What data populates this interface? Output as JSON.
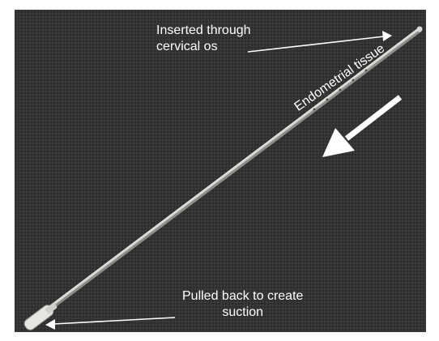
{
  "labels": {
    "top_line1": "Inserted through",
    "top_line2": "cervical os",
    "tissue": "Endometrial tissue",
    "bottom_line1": "Pulled back to create",
    "bottom_line2": "suction"
  },
  "colors": {
    "background": "#333333",
    "frame": "#ffffff",
    "annotation": "#ffffff",
    "catheter": "#c8c8c4"
  },
  "icons": [
    "arrow-right-icon",
    "arrow-down-left-icon",
    "arrow-left-icon"
  ]
}
